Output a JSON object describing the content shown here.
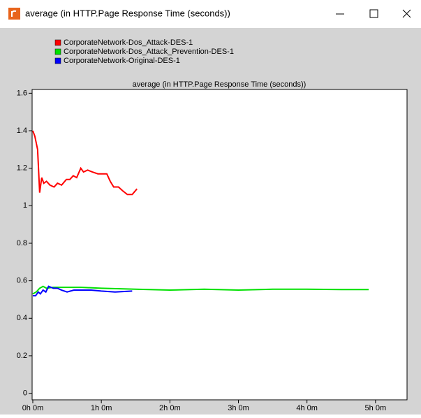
{
  "window_title": "average (in HTTP.Page Response Time (seconds))",
  "chart_data": {
    "type": "line",
    "title": "average (in HTTP.Page Response Time (seconds))",
    "xlim": [
      -0.01,
      5.46
    ],
    "xticks": [
      {
        "value": 0,
        "label": "0h 0m"
      },
      {
        "value": 1,
        "label": "1h 0m"
      },
      {
        "value": 2,
        "label": "2h 0m"
      },
      {
        "value": 3,
        "label": "3h 0m"
      },
      {
        "value": 4,
        "label": "4h 0m"
      },
      {
        "value": 5,
        "label": "5h 0m"
      }
    ],
    "ylim": [
      -0.035,
      1.62
    ],
    "yticks": [
      0,
      0.2,
      0.4,
      0.6,
      0.8,
      1,
      1.2,
      1.4,
      1.6
    ],
    "grid": false,
    "legend": "top-left",
    "series": [
      {
        "name": "CorporateNetwork-Dos_Attack-DES-1",
        "color": "#ff0000",
        "x": [
          0,
          0.03,
          0.07,
          0.1,
          0.13,
          0.16,
          0.2,
          0.25,
          0.31,
          0.36,
          0.42,
          0.49,
          0.54,
          0.59,
          0.64,
          0.7,
          0.74,
          0.8,
          0.87,
          0.95,
          1.03,
          1.08,
          1.13,
          1.18,
          1.25,
          1.31,
          1.38,
          1.45,
          1.52
        ],
        "values": [
          1.4,
          1.37,
          1.3,
          1.07,
          1.15,
          1.12,
          1.13,
          1.11,
          1.1,
          1.12,
          1.11,
          1.14,
          1.14,
          1.16,
          1.15,
          1.2,
          1.18,
          1.19,
          1.18,
          1.17,
          1.17,
          1.17,
          1.13,
          1.1,
          1.1,
          1.08,
          1.06,
          1.06,
          1.09
        ]
      },
      {
        "name": "CorporateNetwork-Dos_Attack_Prevention-DES-1",
        "color": "#00e000",
        "x": [
          0,
          0.05,
          0.1,
          0.15,
          0.2,
          0.3,
          0.5,
          0.7,
          1.0,
          1.5,
          2.0,
          2.5,
          3.0,
          3.5,
          4.0,
          4.5,
          4.9
        ],
        "values": [
          0.53,
          0.54,
          0.56,
          0.57,
          0.56,
          0.565,
          0.565,
          0.565,
          0.56,
          0.555,
          0.55,
          0.555,
          0.55,
          0.555,
          0.555,
          0.553,
          0.553
        ]
      },
      {
        "name": "CorporateNetwork-Original-DES-1",
        "color": "#0000ff",
        "x": [
          0,
          0.04,
          0.08,
          0.11,
          0.15,
          0.19,
          0.23,
          0.3,
          0.36,
          0.42,
          0.5,
          0.6,
          0.7,
          0.85,
          1.0,
          1.2,
          1.45
        ],
        "values": [
          0.52,
          0.52,
          0.54,
          0.53,
          0.55,
          0.54,
          0.57,
          0.56,
          0.56,
          0.55,
          0.54,
          0.55,
          0.55,
          0.55,
          0.545,
          0.54,
          0.545
        ]
      }
    ]
  }
}
